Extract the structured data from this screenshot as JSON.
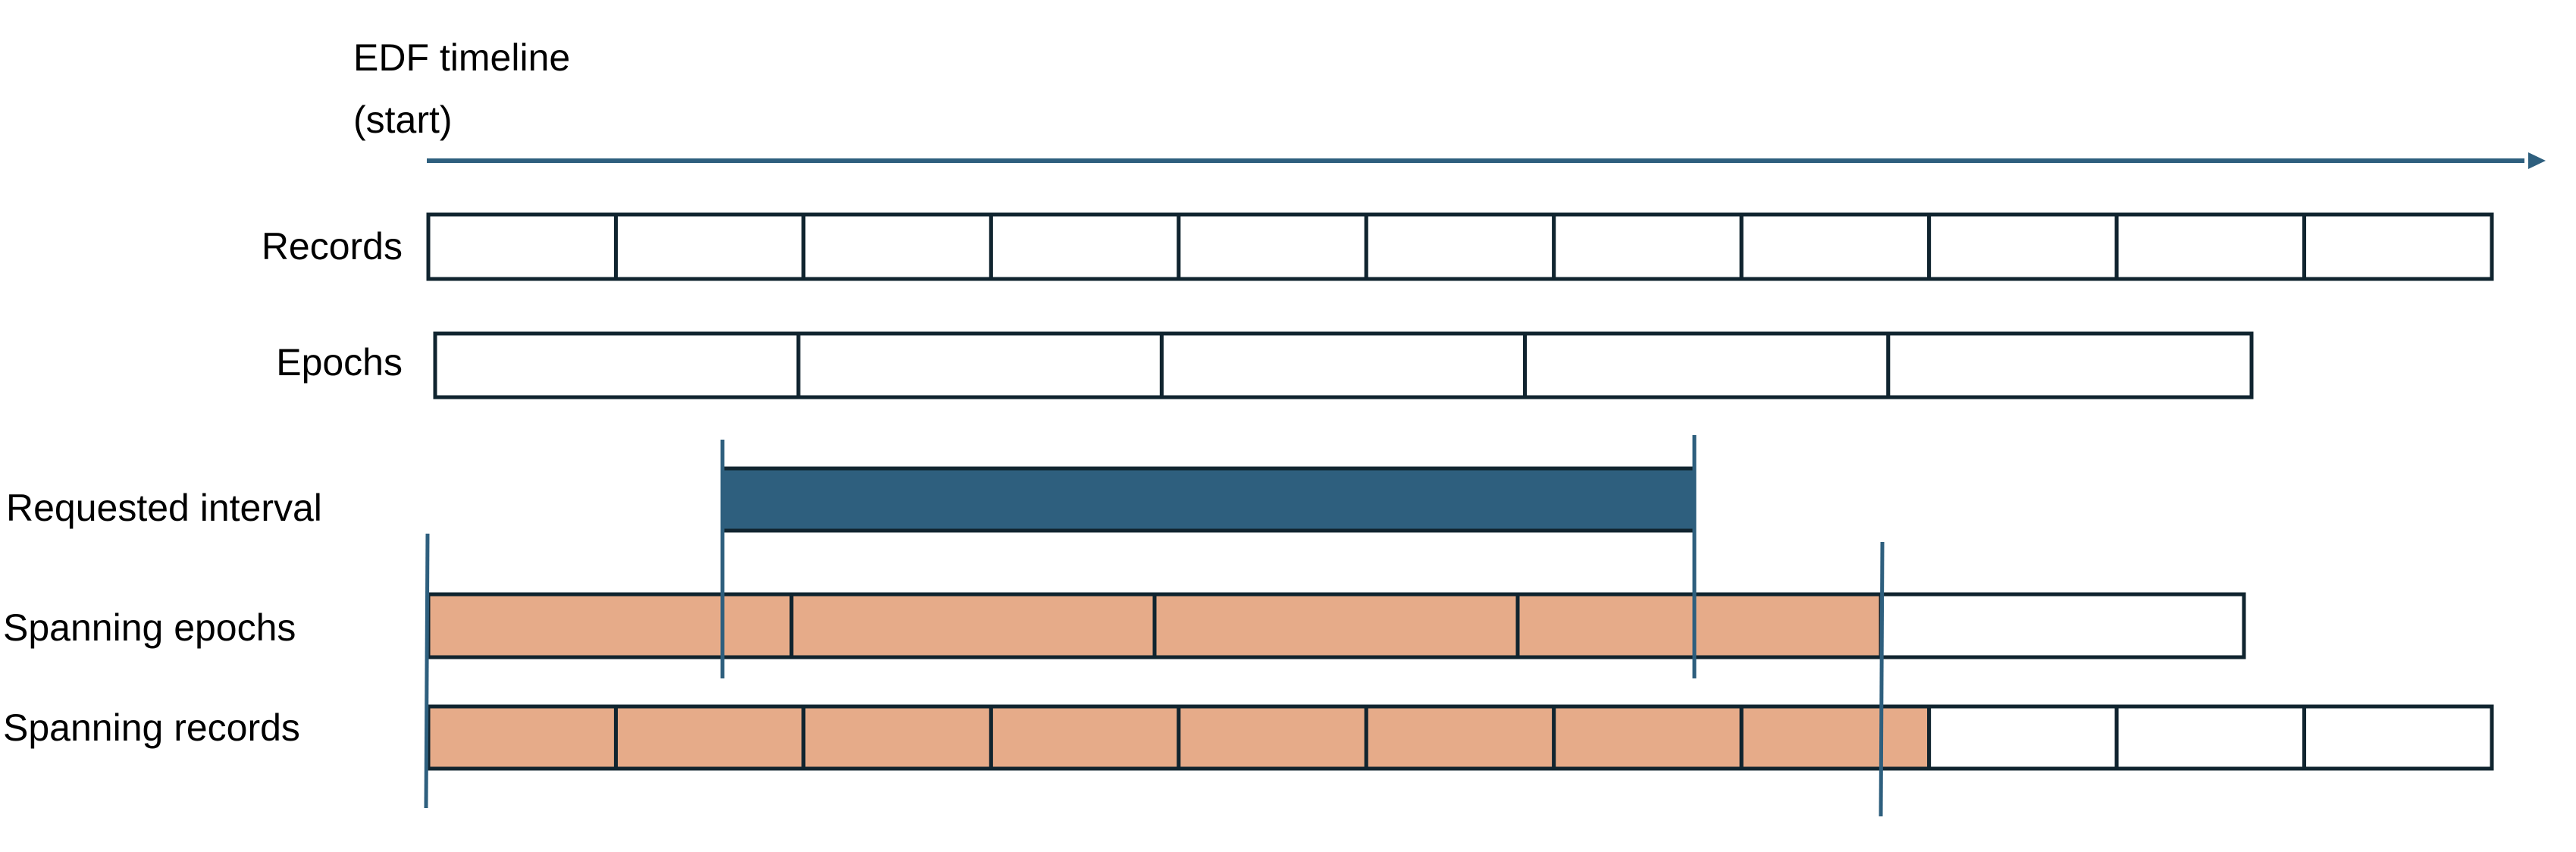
{
  "title": {
    "line1": "EDF timeline",
    "line2": "(start)"
  },
  "colors": {
    "timeline": "#2E5F7E",
    "stroke": "#10242F",
    "interval_fill": "#2E5F7E",
    "span_fill": "#E6AB89",
    "empty_fill": "#FFFFFF"
  },
  "rows": {
    "records": {
      "label": "Records",
      "cells": 11,
      "filled": 0
    },
    "epochs": {
      "label": "Epochs",
      "cells": 5,
      "filled": 0
    },
    "requested_interval": {
      "label": "Requested interval"
    },
    "spanning_epochs": {
      "label": "Spanning epochs",
      "cells": 5,
      "filled": 4
    },
    "spanning_records": {
      "label": "Spanning records",
      "cells": 11,
      "filled": 8
    }
  }
}
